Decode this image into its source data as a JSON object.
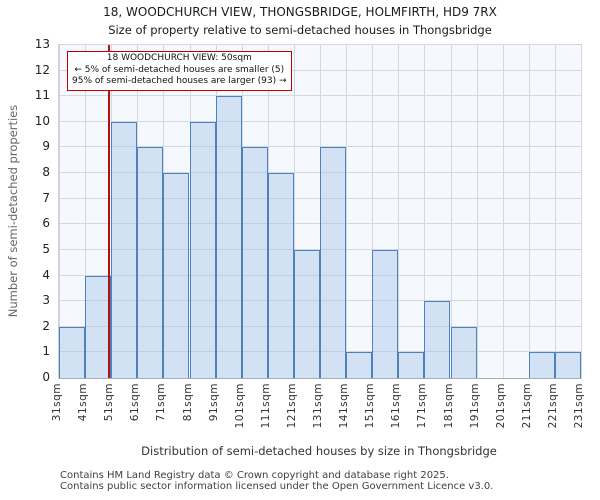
{
  "title": "18, WOODCHURCH VIEW, THONGSBRIDGE, HOLMFIRTH, HD9 7RX",
  "subtitle": "Size of property relative to semi-detached houses in Thongsbridge",
  "annotation": {
    "lines": {
      "0": "18 WOODCHURCH VIEW: 50sqm",
      "1": "← 5% of semi-detached houses are smaller (5)",
      "2": "95% of semi-detached houses are larger (93) →"
    }
  },
  "footer": {
    "line1": "Contains HM Land Registry data © Crown copyright and database right 2025.",
    "line2": "Contains public sector information licensed under the Open Government Licence v3.0."
  },
  "chart_data": {
    "type": "bar",
    "title": "18, WOODCHURCH VIEW, THONGSBRIDGE, HOLMFIRTH, HD9 7RX",
    "subtitle": "Size of property relative to semi-detached houses in Thongsbridge",
    "xlabel": "Distribution of semi-detached houses by size in Thongsbridge",
    "ylabel": "Number of semi-detached properties",
    "categories": [
      "31sqm",
      "41sqm",
      "51sqm",
      "61sqm",
      "71sqm",
      "81sqm",
      "91sqm",
      "101sqm",
      "111sqm",
      "121sqm",
      "131sqm",
      "141sqm",
      "151sqm",
      "161sqm",
      "171sqm",
      "181sqm",
      "191sqm",
      "201sqm",
      "211sqm",
      "221sqm",
      "231sqm"
    ],
    "bin_width_sqm": 10,
    "values": [
      2,
      4,
      10,
      9,
      8,
      10,
      11,
      9,
      8,
      5,
      9,
      1,
      5,
      1,
      3,
      2,
      0,
      0,
      1,
      1
    ],
    "ylim": [
      0,
      13
    ],
    "ytick_step": 1,
    "grid": true,
    "legend": false,
    "marker": {
      "value_sqm": 50,
      "label": "18 WOODCHURCH VIEW: 50sqm",
      "smaller_pct": 5,
      "smaller_count": 5,
      "larger_pct": 95,
      "larger_count": 93
    },
    "colors": {
      "bar_fill": "rgba(164,192,233,0.42)",
      "bar_border": "#4f81bd",
      "marker_line": "#b40f0f",
      "annotation_border": "#c00000",
      "grid_line": "#d4d7de",
      "plot_background": "#f5f8fd"
    }
  }
}
